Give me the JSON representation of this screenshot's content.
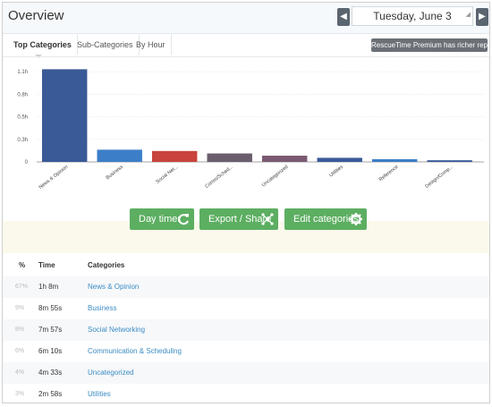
{
  "header": {
    "title": "Overview",
    "date": "Tuesday, June 3",
    "prev_icon": "chevron-left-icon",
    "next_icon": "chevron-right-icon"
  },
  "tabs": [
    {
      "label": "Top Categories",
      "active": true
    },
    {
      "label": "Sub-Categories",
      "active": false
    },
    {
      "label": "By Hour",
      "active": false
    }
  ],
  "premium_badge": "RescueTime Premium has richer reports",
  "chart_data": {
    "type": "bar",
    "categories": [
      "News & Opinion",
      "Business",
      "Social Net...",
      "Comm/Sched...",
      "Uncategorized",
      "Utilities",
      "Reference",
      "Design/Comp..."
    ],
    "values": [
      1.13,
      0.149,
      0.133,
      0.103,
      0.076,
      0.05,
      0.033,
      0.02
    ],
    "colors": [
      "#3a5a97",
      "#3c7fc8",
      "#c8443c",
      "#6a5e6e",
      "#7a5a72",
      "#3a5a97",
      "#3c7fc8",
      "#3a5a97"
    ],
    "ytick_labels": [
      "0",
      "0.3h",
      "0.5h",
      "0.8h",
      "1.1h"
    ],
    "ytick_values": [
      0,
      0.275,
      0.55,
      0.825,
      1.1
    ],
    "ylim": [
      0,
      1.2
    ],
    "xlabel": "",
    "ylabel": "",
    "grid": true
  },
  "buttons": {
    "daytimer": "Day timer",
    "export": "Export / Share",
    "edit_categories": "Edit categories"
  },
  "table": {
    "headers": {
      "pct": "%",
      "time": "Time",
      "category": "Categories"
    },
    "rows": [
      {
        "pct": "67%",
        "time": "1h 8m",
        "category": "News & Opinion"
      },
      {
        "pct": "9%",
        "time": "8m 55s",
        "category": "Business"
      },
      {
        "pct": "8%",
        "time": "7m 57s",
        "category": "Social Networking"
      },
      {
        "pct": "6%",
        "time": "6m 10s",
        "category": "Communication & Scheduling"
      },
      {
        "pct": "4%",
        "time": "4m 33s",
        "category": "Uncategorized"
      },
      {
        "pct": "3%",
        "time": "2m 58s",
        "category": "Utilities"
      }
    ]
  }
}
